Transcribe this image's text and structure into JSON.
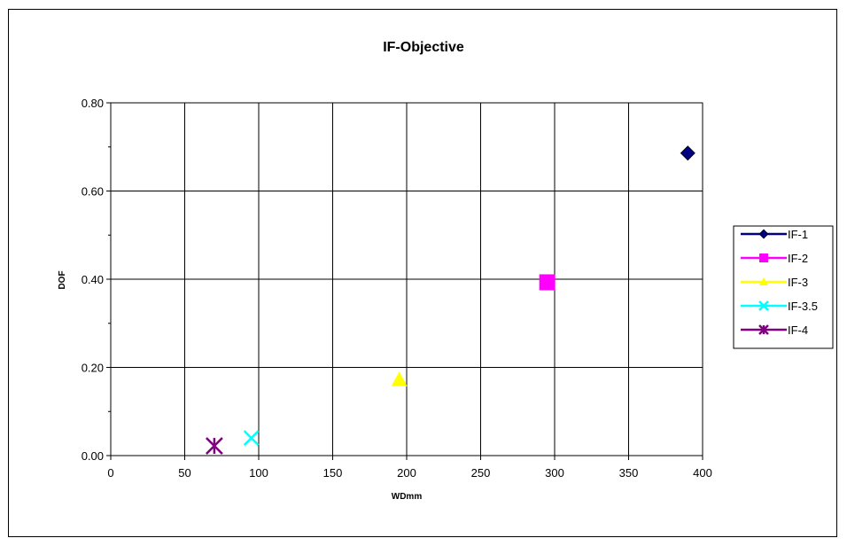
{
  "chart_data": {
    "type": "scatter",
    "title": "IF-Objective",
    "xlabel": "WDmm",
    "ylabel": "DOF",
    "xlim": [
      0,
      400
    ],
    "ylim": [
      0,
      0.8
    ],
    "x_ticks": [
      "0",
      "50",
      "100",
      "150",
      "200",
      "250",
      "300",
      "350",
      "400"
    ],
    "y_ticks": [
      "0.00",
      "0.20",
      "0.40",
      "0.60",
      "0.80"
    ],
    "grid": true,
    "legend_position": "right",
    "series": [
      {
        "name": "IF-1",
        "x": 390,
        "y": 0.686,
        "marker": "diamond",
        "color": "#000080"
      },
      {
        "name": "IF-2",
        "x": 295,
        "y": 0.393,
        "marker": "square",
        "color": "#FF00FF"
      },
      {
        "name": "IF-3",
        "x": 195,
        "y": 0.172,
        "marker": "triangle",
        "color": "#FFFF00"
      },
      {
        "name": "IF-3.5",
        "x": 95,
        "y": 0.04,
        "marker": "x",
        "color": "#00FFFF"
      },
      {
        "name": "IF-4",
        "x": 70,
        "y": 0.022,
        "marker": "star",
        "color": "#800080"
      }
    ]
  }
}
